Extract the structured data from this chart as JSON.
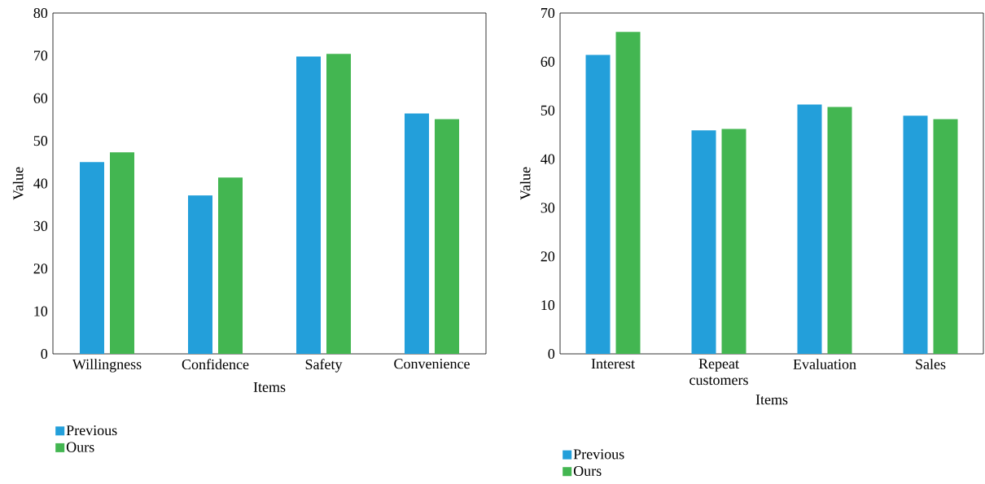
{
  "chart_data": [
    {
      "type": "bar",
      "xlabel": "Items",
      "ylabel": "Value",
      "categories": [
        "Willingness",
        "Confidence",
        "Safety",
        "Convenience"
      ],
      "series": [
        {
          "name": "Previous",
          "color": "#239fda",
          "values": [
            45.0,
            37.2,
            69.8,
            56.4
          ]
        },
        {
          "name": "Ours",
          "color": "#43b651",
          "values": [
            47.3,
            41.4,
            70.4,
            55.1
          ]
        }
      ],
      "ylim": [
        0,
        80
      ],
      "yticks": [
        0,
        10,
        20,
        30,
        40,
        50,
        60,
        70,
        80
      ],
      "legend": "bottom"
    },
    {
      "type": "bar",
      "xlabel": "Items",
      "ylabel": "Value",
      "categories": [
        "Interest",
        "Repeat customers",
        "Evaluation",
        "Sales"
      ],
      "series": [
        {
          "name": "Previous",
          "color": "#239fda",
          "values": [
            61.4,
            45.9,
            51.2,
            48.9
          ]
        },
        {
          "name": "Ours",
          "color": "#43b651",
          "values": [
            66.1,
            46.2,
            50.7,
            48.2
          ]
        }
      ],
      "ylim": [
        0,
        70
      ],
      "yticks": [
        0,
        10,
        20,
        30,
        40,
        50,
        60,
        70
      ],
      "legend": "bottom"
    }
  ]
}
